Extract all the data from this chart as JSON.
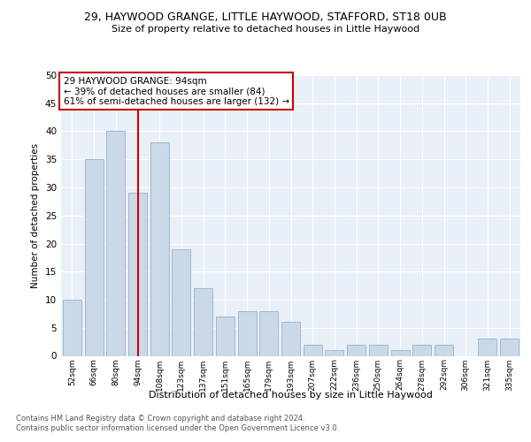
{
  "title1": "29, HAYWOOD GRANGE, LITTLE HAYWOOD, STAFFORD, ST18 0UB",
  "title2": "Size of property relative to detached houses in Little Haywood",
  "xlabel": "Distribution of detached houses by size in Little Haywood",
  "ylabel": "Number of detached properties",
  "categories": [
    "52sqm",
    "66sqm",
    "80sqm",
    "94sqm",
    "108sqm",
    "123sqm",
    "137sqm",
    "151sqm",
    "165sqm",
    "179sqm",
    "193sqm",
    "207sqm",
    "222sqm",
    "236sqm",
    "250sqm",
    "264sqm",
    "278sqm",
    "292sqm",
    "306sqm",
    "321sqm",
    "335sqm"
  ],
  "values": [
    10,
    35,
    40,
    29,
    38,
    19,
    12,
    7,
    8,
    8,
    6,
    2,
    1,
    2,
    2,
    1,
    2,
    2,
    0,
    3,
    3
  ],
  "bar_color": "#c9d9e8",
  "bar_edge_color": "#a0b8cc",
  "vline_x": 3.0,
  "vline_color": "#cc0000",
  "annotation_line1": "29 HAYWOOD GRANGE: 94sqm",
  "annotation_line2": "← 39% of detached houses are smaller (84)",
  "annotation_line3": "61% of semi-detached houses are larger (132) →",
  "annotation_box_color": "#cc0000",
  "ylim": [
    0,
    50
  ],
  "yticks": [
    0,
    5,
    10,
    15,
    20,
    25,
    30,
    35,
    40,
    45,
    50
  ],
  "footnote1": "Contains HM Land Registry data © Crown copyright and database right 2024.",
  "footnote2": "Contains public sector information licensed under the Open Government Licence v3.0.",
  "plot_background": "#eaf0f8"
}
